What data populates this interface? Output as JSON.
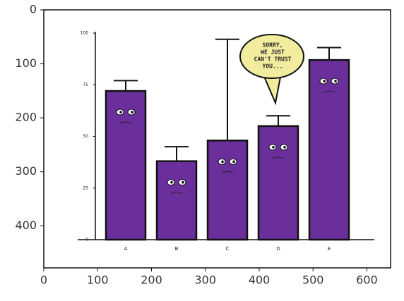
{
  "chart_data": [
    {
      "type": "image",
      "xlim": [
        0,
        644
      ],
      "ylim": [
        478,
        0
      ],
      "xticks": [
        0,
        100,
        200,
        300,
        400,
        500,
        600
      ],
      "yticks": [
        0,
        100,
        200,
        300,
        400
      ]
    },
    {
      "type": "bar",
      "categories": [
        "A",
        "B",
        "C",
        "D",
        "E"
      ],
      "values": [
        72,
        38,
        48,
        55,
        87
      ],
      "errors": [
        5,
        7,
        49,
        5,
        6
      ],
      "color": "#6a2f9a",
      "ylim": [
        0,
        100
      ],
      "yticks": [
        0,
        25,
        50,
        75,
        100
      ],
      "annotation": [
        "SORRY,",
        "WE JUST",
        "CAN'T TRUST",
        "YOU..."
      ]
    }
  ]
}
